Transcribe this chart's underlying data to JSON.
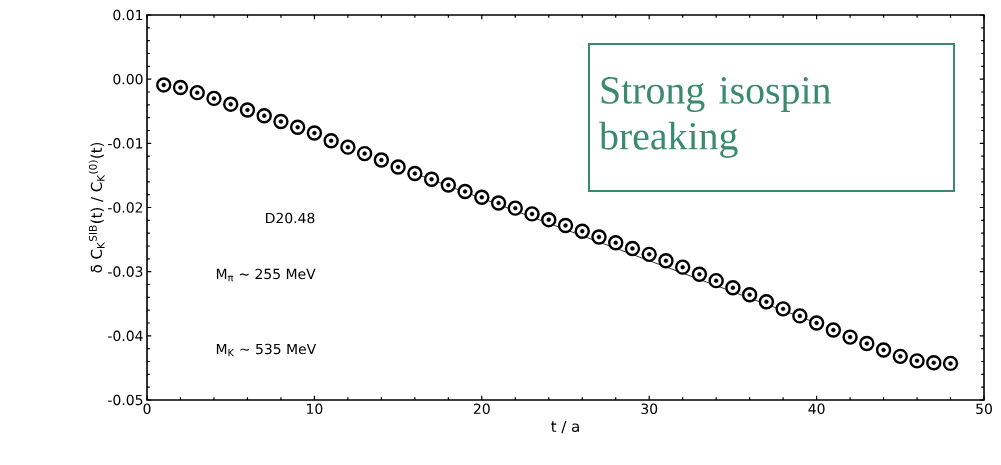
{
  "chart_data": {
    "type": "scatter",
    "xlabel": "t / a",
    "ylabel": "δ C$_{K}$$^{SIB}$(t) / C$_{K}$$^{(0)}$(t)",
    "x": [
      1,
      2,
      3,
      4,
      5,
      6,
      7,
      8,
      9,
      10,
      11,
      12,
      13,
      14,
      15,
      16,
      17,
      18,
      19,
      20,
      21,
      22,
      23,
      24,
      25,
      26,
      27,
      28,
      29,
      30,
      31,
      32,
      33,
      34,
      35,
      36,
      37,
      38,
      39,
      40,
      41,
      42,
      43,
      44,
      45,
      46,
      47,
      48
    ],
    "series": [
      {
        "type": "scatter",
        "color": "#000000",
        "marker": "circle",
        "values": [
          -0.0009,
          -0.0013,
          -0.0021,
          -0.003,
          -0.0039,
          -0.0048,
          -0.0057,
          -0.0066,
          -0.0075,
          -0.0084,
          -0.0096,
          -0.0106,
          -0.0116,
          -0.0126,
          -0.0137,
          -0.0147,
          -0.0156,
          -0.0165,
          -0.0175,
          -0.0184,
          -0.0193,
          -0.0201,
          -0.021,
          -0.0219,
          -0.0228,
          -0.0237,
          -0.0246,
          -0.0255,
          -0.0264,
          -0.0273,
          -0.0283,
          -0.0293,
          -0.0304,
          -0.0314,
          -0.0325,
          -0.0336,
          -0.0347,
          -0.0358,
          -0.0369,
          -0.038,
          -0.0391,
          -0.0402,
          -0.0412,
          -0.0422,
          -0.0432,
          -0.0439,
          -0.0442,
          -0.0443
        ],
        "errors": [
          0.0001,
          0.0001,
          0.0001,
          0.0001,
          0.0001,
          0.0001,
          0.0001,
          0.0001,
          0.0001,
          0.0001,
          0.0003,
          0.0003,
          0.0003,
          0.0003,
          0.0003,
          0.0003,
          0.0003,
          0.0003,
          0.0003,
          0.0003,
          0.0003,
          0.0003,
          0.0003,
          0.0003,
          0.0003,
          0.0003,
          0.0003,
          0.0003,
          0.0003,
          0.0003,
          0.0004,
          0.0004,
          0.0004,
          0.0004,
          0.0004,
          0.0004,
          0.0004,
          0.0004,
          0.0004,
          0.0004,
          0.0004,
          0.0004,
          0.0004,
          0.0004,
          0.0004,
          0.0004,
          0.0004,
          0.0004
        ]
      },
      {
        "type": "line",
        "color": "#000000",
        "marker": "none",
        "x": [
          16,
          40
        ],
        "values": [
          -0.0147,
          -0.038
        ]
      }
    ],
    "xlim": [
      0,
      50
    ],
    "ylim": [
      -0.05,
      0.01
    ],
    "xticks": [
      0,
      10,
      20,
      30,
      40,
      50
    ],
    "yticks": [
      0.01,
      {
        "value": 0,
        "label": "0.00"
      },
      -0.01,
      -0.02,
      -0.03,
      -0.04,
      -0.05
    ],
    "grid": false,
    "annotations": [
      "Strong  isospin breaking",
      "D20.48",
      "M$_{π}$ ~ 255 MeV",
      "M$_{K}$ ~ 535 MeV"
    ]
  }
}
